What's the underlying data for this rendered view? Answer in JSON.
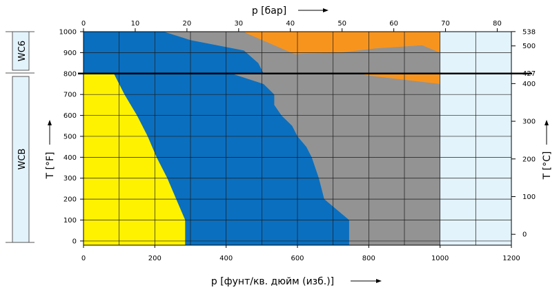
{
  "chart_data": {
    "type": "area",
    "x_bottom": {
      "label": "p [фунт/кв. дюйм (изб.)]",
      "ticks": [
        0,
        200,
        400,
        600,
        800,
        1000,
        1200
      ],
      "lim": [
        0,
        1200
      ]
    },
    "x_top": {
      "label": "p [бар]",
      "ticks": [
        0,
        10,
        20,
        30,
        40,
        50,
        60,
        70,
        80
      ]
    },
    "y_left": {
      "label": "T [°F]",
      "ticks": [
        0,
        100,
        200,
        300,
        400,
        500,
        600,
        700,
        800,
        900,
        1000
      ],
      "lim": [
        -20,
        1000
      ]
    },
    "y_right": {
      "label": "T [°C]",
      "ticks": [
        0,
        100,
        200,
        300,
        400,
        427,
        500,
        538
      ]
    },
    "grades": [
      {
        "name": "WC6",
        "range": [
          800,
          1000
        ]
      },
      {
        "name": "WCB",
        "range": [
          -20,
          800
        ]
      }
    ],
    "grade_separator": 800,
    "light_region": {
      "x": [
        1000,
        1200
      ],
      "color": "#e3f3fb"
    },
    "regions": [
      {
        "color": "#939393",
        "points": [
          [
            0,
            -20
          ],
          [
            0,
            1000
          ],
          [
            1000,
            1000
          ],
          [
            1000,
            -20
          ]
        ]
      },
      {
        "color": "#f7941e",
        "points": [
          [
            450,
            1000
          ],
          [
            1000,
            1000
          ],
          [
            1000,
            750
          ],
          [
            800,
            790
          ],
          [
            650,
            850
          ],
          [
            460,
            990
          ]
        ]
      },
      {
        "color": "#939393",
        "points": [
          [
            500,
            800
          ],
          [
            530,
            885
          ],
          [
            620,
            895
          ],
          [
            720,
            900
          ],
          [
            820,
            920
          ],
          [
            950,
            935
          ],
          [
            1000,
            900
          ],
          [
            1000,
            800
          ]
        ]
      },
      {
        "color": "#0a6fbf",
        "points": [
          [
            0,
            -20
          ],
          [
            0,
            1000
          ],
          [
            225,
            1000
          ],
          [
            300,
            960
          ],
          [
            450,
            910
          ],
          [
            490,
            850
          ],
          [
            505,
            800
          ],
          [
            415,
            800
          ],
          [
            505,
            750
          ],
          [
            535,
            700
          ],
          [
            535,
            650
          ],
          [
            555,
            600
          ],
          [
            585,
            550
          ],
          [
            600,
            500
          ],
          [
            625,
            450
          ],
          [
            640,
            400
          ],
          [
            650,
            350
          ],
          [
            660,
            300
          ],
          [
            675,
            200
          ],
          [
            745,
            100
          ],
          [
            745,
            -20
          ]
        ]
      },
      {
        "color": "#fff200",
        "points": [
          [
            0,
            -20
          ],
          [
            0,
            800
          ],
          [
            85,
            800
          ],
          [
            115,
            700
          ],
          [
            150,
            600
          ],
          [
            180,
            500
          ],
          [
            205,
            400
          ],
          [
            235,
            300
          ],
          [
            260,
            200
          ],
          [
            285,
            100
          ],
          [
            285,
            -20
          ]
        ]
      }
    ],
    "series": []
  }
}
